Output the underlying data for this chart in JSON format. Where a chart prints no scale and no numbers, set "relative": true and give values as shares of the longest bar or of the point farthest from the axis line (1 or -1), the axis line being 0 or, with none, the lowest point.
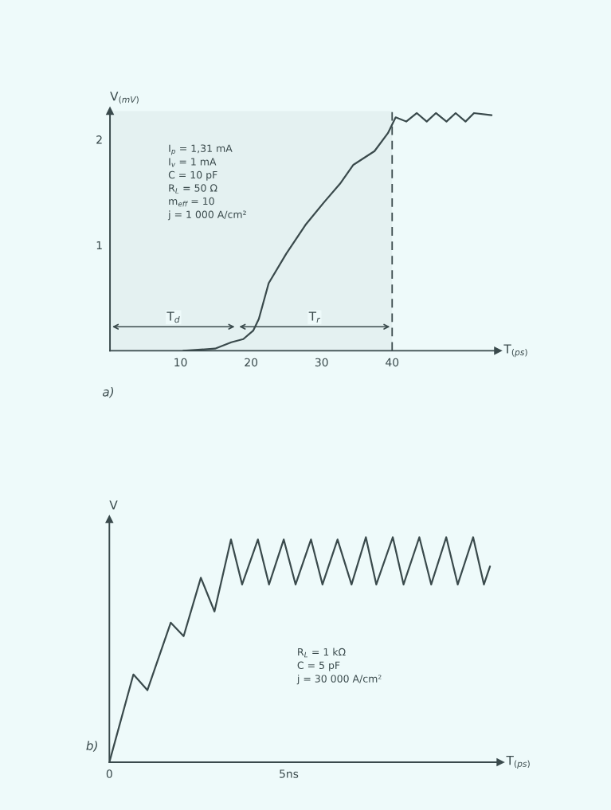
{
  "chart_data": [
    {
      "type": "line",
      "title": "a)",
      "xlabel": "T$_{(ps)}$",
      "ylabel": "V$_{(mV)}$",
      "xlim": [
        0,
        55
      ],
      "xticks": [
        10,
        20,
        30,
        40
      ],
      "ylim": [
        0,
        2.27
      ],
      "yticks": [
        1,
        2
      ],
      "grid": false,
      "legend": false,
      "marker": "none",
      "line_style": "solid",
      "series": [
        {
          "color": "#3a4a4c",
          "x": [
            10.4,
            14.9,
            17.2,
            18.9,
            20.3,
            21.1,
            22.5,
            25.0,
            27.7,
            30.4,
            32.6,
            34.5,
            37.5,
            39.4,
            40.5,
            42.0,
            43.5,
            44.9,
            46.2,
            47.7,
            49.0,
            50.4,
            51.6,
            54.1
          ],
          "values": [
            0,
            0.02,
            0.08,
            0.11,
            0.19,
            0.3,
            0.64,
            0.92,
            1.19,
            1.41,
            1.58,
            1.76,
            1.89,
            2.06,
            2.21,
            2.17,
            2.25,
            2.17,
            2.25,
            2.17,
            2.25,
            2.17,
            2.25,
            2.23
          ]
        }
      ],
      "ref_lines": [
        {
          "axis": "x",
          "value": 40,
          "line_style": "dashed"
        }
      ],
      "bands": [
        {
          "axis": "x",
          "from": 0,
          "to": 18,
          "label": "T$_{d}$"
        },
        {
          "axis": "x",
          "from": 18,
          "to": 40,
          "label": "T$_{r}$"
        }
      ],
      "annotations": [
        "I$_{p}$ = 1,31 mA",
        "I$_{v}$ = 1 mA",
        "C = 10 pF",
        "R$_{L}$ = 50 Ω",
        "m$_{eff}$ = 10",
        "j = 1 000 A/cm²"
      ]
    },
    {
      "type": "line",
      "title": "b)",
      "xlabel": "T$_{(ps)}$",
      "ylabel": "V",
      "relative": true,
      "xlim": [
        0,
        10.9
      ],
      "xticks": [
        0,
        {
          "value": 5,
          "label": "5ns"
        }
      ],
      "grid": false,
      "legend": false,
      "marker": "none",
      "line_style": "solid",
      "series": [
        {
          "color": "#3a4a4c",
          "x": [
            0,
            0.67,
            1.06,
            1.71,
            2.07,
            2.55,
            2.93,
            3.39,
            3.7,
            4.14,
            4.45,
            4.86,
            5.19,
            5.62,
            5.94,
            6.36,
            6.75,
            7.15,
            7.44,
            7.9,
            8.2,
            8.64,
            8.97,
            9.39,
            9.71,
            10.14,
            10.44,
            10.61
          ],
          "values": [
            0,
            0.39,
            0.32,
            0.62,
            0.56,
            0.82,
            0.67,
            0.99,
            0.79,
            0.99,
            0.79,
            0.99,
            0.79,
            0.99,
            0.79,
            0.99,
            0.79,
            1.0,
            0.79,
            1.0,
            0.79,
            1.0,
            0.79,
            1.0,
            0.79,
            1.0,
            0.79,
            0.87
          ]
        }
      ],
      "annotations": [
        "R$_{L}$ = 1 kΩ",
        "C = 5 pF",
        "j = 30 000 A/cm²"
      ]
    }
  ]
}
